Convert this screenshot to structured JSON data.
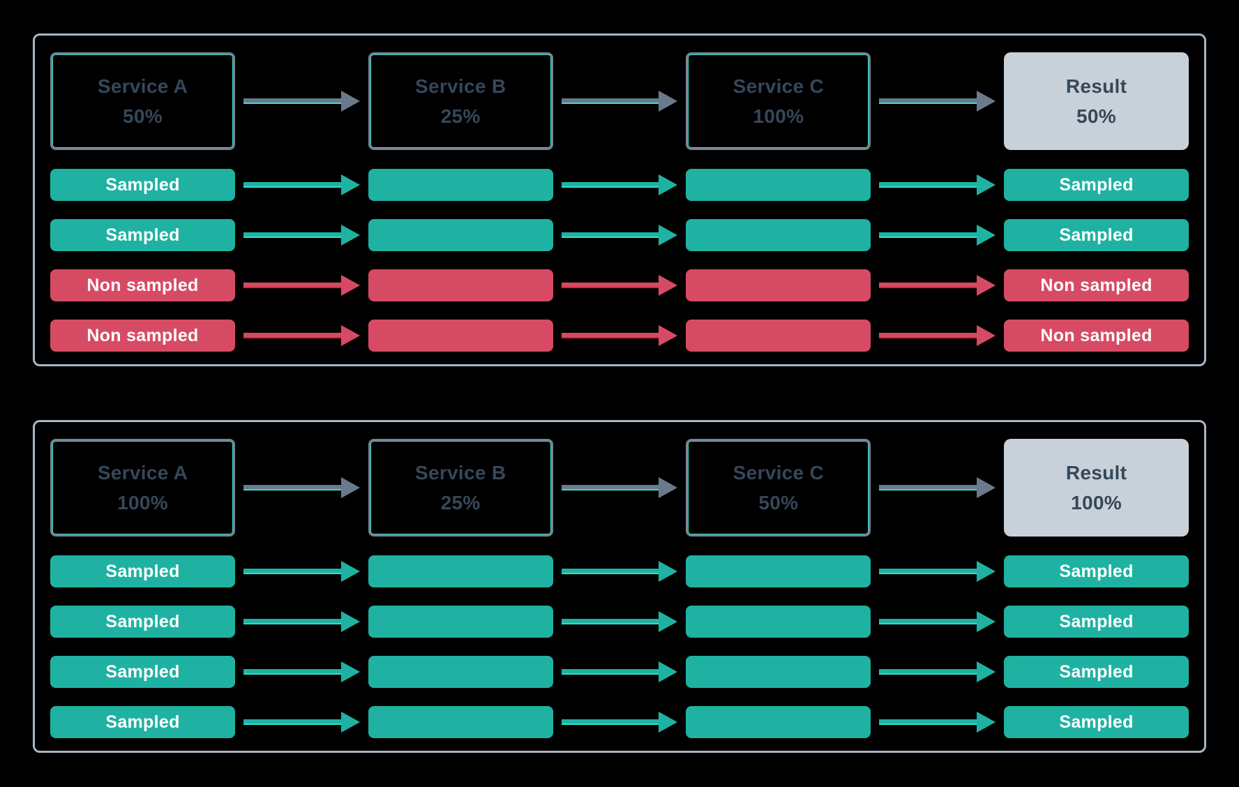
{
  "colors": {
    "bg": "#000000",
    "panel_border": "#a9b6c3",
    "box_border": "#78828f",
    "accent_cyan": "#2fe0ce",
    "accent_red": "#f01c2e",
    "teal": "#1fb2a2",
    "red": "#d64b63",
    "arrow_gray": "#6b7a8a",
    "result_fill": "#c8d1d9",
    "dark_text": "#36475a",
    "bar_text": "#ffffff"
  },
  "icons": {
    "flow_arrow": "arrow-right"
  },
  "panels": [
    {
      "services": [
        {
          "label": "Service A",
          "value": "50%"
        },
        {
          "label": "Service B",
          "value": "25%"
        },
        {
          "label": "Service C",
          "value": "100%"
        }
      ],
      "result": {
        "label": "Result",
        "value": "50%"
      },
      "rows": [
        {
          "status": "sampled",
          "label": "Sampled"
        },
        {
          "status": "sampled",
          "label": "Sampled"
        },
        {
          "status": "non-sampled",
          "label": "Non sampled"
        },
        {
          "status": "non-sampled",
          "label": "Non sampled"
        }
      ]
    },
    {
      "services": [
        {
          "label": "Service A",
          "value": "100%"
        },
        {
          "label": "Service B",
          "value": "25%"
        },
        {
          "label": "Service C",
          "value": "50%"
        }
      ],
      "result": {
        "label": "Result",
        "value": "100%"
      },
      "rows": [
        {
          "status": "sampled",
          "label": "Sampled"
        },
        {
          "status": "sampled",
          "label": "Sampled"
        },
        {
          "status": "sampled",
          "label": "Sampled"
        },
        {
          "status": "sampled",
          "label": "Sampled"
        }
      ]
    }
  ]
}
